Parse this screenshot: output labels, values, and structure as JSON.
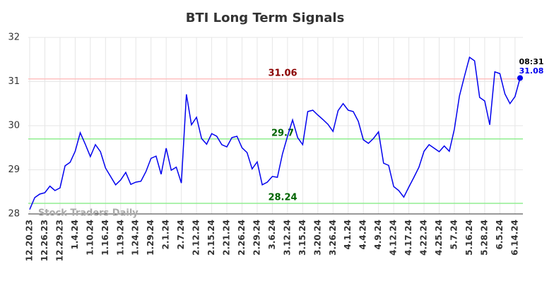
{
  "chart_data": {
    "type": "line",
    "title": "BTI Long Term Signals",
    "categories": [
      "12.20.23",
      null,
      null,
      "12.26.23",
      null,
      null,
      "12.29.23",
      null,
      null,
      "1.4.24",
      null,
      null,
      "1.10.24",
      null,
      null,
      "1.16.24",
      null,
      null,
      "1.19.24",
      null,
      null,
      "1.24.24",
      null,
      null,
      "1.29.24",
      null,
      null,
      "2.1.24",
      null,
      null,
      "2.7.24",
      null,
      null,
      "2.12.24",
      null,
      null,
      "2.15.24",
      null,
      null,
      "2.21.24",
      null,
      null,
      "2.26.24",
      null,
      null,
      "2.29.24",
      null,
      null,
      "3.6.24",
      null,
      null,
      "3.12.24",
      null,
      null,
      "3.15.24",
      null,
      null,
      "3.20.24",
      null,
      null,
      "3.26.24",
      null,
      null,
      "4.1.24",
      null,
      null,
      "4.4.24",
      null,
      null,
      "4.9.24",
      null,
      null,
      "4.12.24",
      null,
      null,
      "4.17.24",
      null,
      null,
      "4.22.24",
      null,
      null,
      "4.25.24",
      null,
      null,
      "5.7.24",
      null,
      null,
      "5.16.24",
      null,
      null,
      "5.28.24",
      null,
      null,
      "6.5.24",
      null,
      null,
      "6.14.24",
      null
    ],
    "values": [
      28.1,
      28.37,
      28.45,
      28.48,
      28.63,
      28.53,
      28.59,
      29.09,
      29.17,
      29.42,
      29.84,
      29.58,
      29.3,
      29.57,
      29.41,
      29.04,
      28.85,
      28.66,
      28.77,
      28.94,
      28.67,
      28.72,
      28.74,
      28.96,
      29.26,
      29.31,
      28.9,
      29.49,
      28.99,
      29.06,
      28.7,
      30.71,
      30.02,
      30.19,
      29.71,
      29.58,
      29.82,
      29.76,
      29.57,
      29.52,
      29.73,
      29.76,
      29.5,
      29.39,
      29.02,
      29.18,
      28.66,
      28.72,
      28.85,
      28.83,
      29.36,
      29.76,
      30.13,
      29.73,
      29.57,
      30.32,
      30.35,
      30.24,
      30.14,
      30.03,
      29.87,
      30.34,
      30.5,
      30.35,
      30.32,
      30.1,
      29.68,
      29.6,
      29.71,
      29.86,
      29.15,
      29.1,
      28.62,
      28.53,
      28.38,
      28.61,
      28.83,
      29.06,
      29.42,
      29.57,
      29.49,
      29.41,
      29.54,
      29.42,
      29.92,
      30.67,
      31.12,
      31.55,
      31.47,
      30.64,
      30.56,
      30.02,
      31.22,
      31.18,
      30.72,
      30.5,
      30.66,
      31.08
    ],
    "color": "#0000ee",
    "ylim": [
      28,
      32
    ],
    "yticks": [
      28,
      29,
      30,
      31,
      32
    ],
    "grid": true,
    "hlines": [
      {
        "value": 31.06,
        "color": "#ffc0c0",
        "label_color": "#8b0000"
      },
      {
        "value": 29.7,
        "color": "#90ee90",
        "label_color": "#006400"
      },
      {
        "value": 28.24,
        "color": "#90ee90",
        "label_color": "#006400"
      }
    ],
    "last_time": "08:31",
    "watermark": "Stock Traders Daily"
  }
}
